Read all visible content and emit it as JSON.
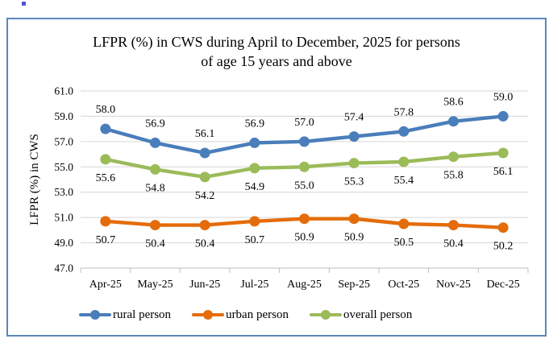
{
  "page": {
    "stray_mark": ".",
    "background_color": "#ffffff"
  },
  "chart": {
    "title_lines": [
      "LFPR (%) in CWS during April to December, 2025 for persons",
      "of age 15 years and above"
    ],
    "border_color": "#5B87B8",
    "gridline_color": "#D6D6D6",
    "axis_color": "#BFBFBF"
  },
  "chart_data": {
    "type": "line",
    "title": "LFPR (%) in CWS during April to December, 2025 for persons of age 15 years and above",
    "categories": [
      "Apr-25",
      "May-25",
      "Jun-25",
      "Jul-25",
      "Aug-25",
      "Sep-25",
      "Oct-25",
      "Nov-25",
      "Dec-25"
    ],
    "series": [
      {
        "name": "rural person",
        "color": "#4A7EBB",
        "values": [
          58.0,
          56.9,
          56.1,
          56.9,
          57.0,
          57.4,
          57.8,
          58.6,
          59.0
        ],
        "label_position": "above"
      },
      {
        "name": "urban person",
        "color": "#E46C0A",
        "values": [
          50.7,
          50.4,
          50.4,
          50.7,
          50.9,
          50.9,
          50.5,
          50.4,
          50.2
        ],
        "label_position": "below"
      },
      {
        "name": "overall person",
        "color": "#9BBB59",
        "values": [
          55.6,
          54.8,
          54.2,
          54.9,
          55.0,
          55.3,
          55.4,
          55.8,
          56.1
        ],
        "label_position": "below"
      }
    ],
    "xlabel": "",
    "ylabel": "LFPR (%) in CWS",
    "ylim": [
      47.0,
      61.0
    ],
    "ytick_step": 2.0,
    "yticks": [
      "61.0",
      "59.0",
      "57.0",
      "55.0",
      "53.0",
      "51.0",
      "49.0",
      "47.0"
    ],
    "grid": true,
    "data_labels": true,
    "legend_position": "bottom",
    "legend": [
      "rural person",
      "urban person",
      "overall person"
    ]
  }
}
